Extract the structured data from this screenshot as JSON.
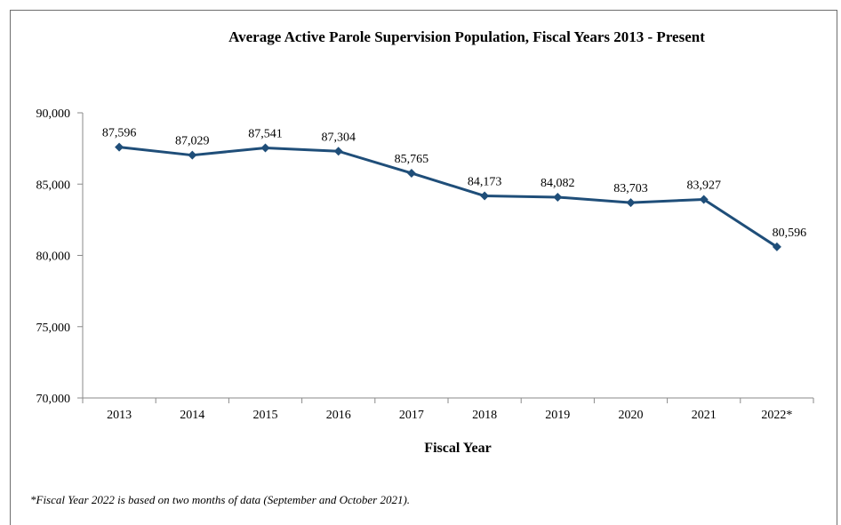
{
  "chart_data": {
    "type": "line",
    "title": "Average Active Parole Supervision Population, Fiscal Years 2013 - Present",
    "xlabel": "Fiscal Year",
    "ylabel": "",
    "categories": [
      "2013",
      "2014",
      "2015",
      "2016",
      "2017",
      "2018",
      "2019",
      "2020",
      "2021",
      "2022*"
    ],
    "series": [
      {
        "values": [
          87596,
          87029,
          87541,
          87304,
          85765,
          84173,
          84082,
          83703,
          83927,
          80596
        ],
        "data_labels": [
          "87,596",
          "87,029",
          "87,541",
          "87,304",
          "85,765",
          "84,173",
          "84,082",
          "83,703",
          "83,927",
          "80,596"
        ]
      }
    ],
    "ylim": [
      70000,
      90000
    ],
    "yticks": [
      70000,
      75000,
      80000,
      85000,
      90000
    ],
    "ytick_labels": [
      "70,000",
      "75,000",
      "80,000",
      "85,000",
      "90,000"
    ],
    "grid": false,
    "line_color": "#1f4e79",
    "footnote": "*Fiscal Year 2022 is based on two months of data (September and October 2021)."
  }
}
